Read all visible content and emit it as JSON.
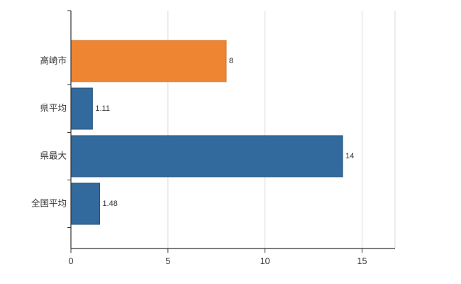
{
  "chart_data": {
    "type": "bar",
    "orientation": "horizontal",
    "title": "",
    "xlabel": "",
    "ylabel": "",
    "categories": [
      "高崎市",
      "県平均",
      "県最大",
      "全国平均"
    ],
    "values": [
      8,
      1.11,
      14,
      1.48
    ],
    "value_labels": [
      "8",
      "1.11",
      "14",
      "1.48"
    ],
    "bar_colors": [
      "#ee8533",
      "#336a9e",
      "#336a9e",
      "#336a9e"
    ],
    "bar_border_colors": [
      "#cf6d1f",
      "#27537d",
      "#27537d",
      "#27537d"
    ],
    "x_ticks": [
      0,
      5,
      10,
      15
    ],
    "x_tick_labels": [
      "0",
      "5",
      "10",
      "15"
    ],
    "xlim": [
      0,
      16.7
    ],
    "grid": true,
    "legend": false,
    "grid_color": "#d9d9d9",
    "axis_color": "#333333",
    "label_color": "#333333",
    "background": "#ffffff"
  }
}
